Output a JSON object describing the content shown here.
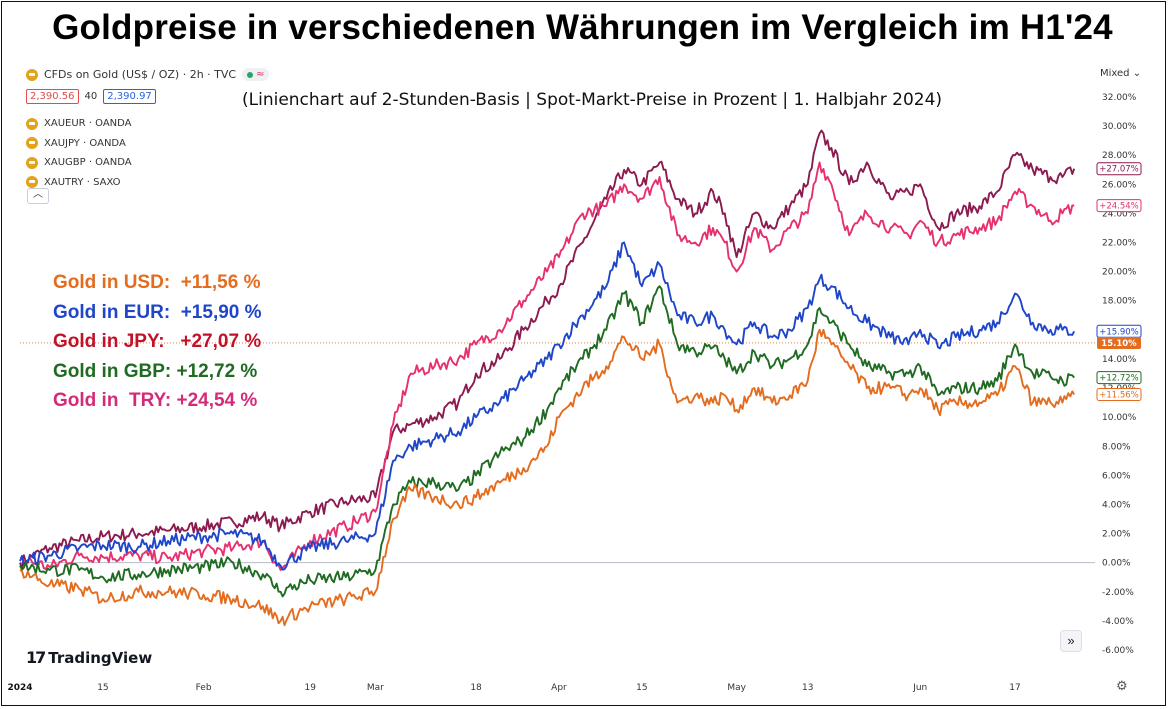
{
  "title": "Goldpreise in verschiedenen Währungen im Vergleich im H1'24",
  "subtitle": "(Linienchart auf 2-Stunden-Basis | Spot-Markt-Preise in Prozent | 1. Halbjahr 2024)",
  "header": {
    "symbol_label": "CFDs on Gold (US$ / OZ) · 2h · TVC",
    "bid": "2,390.56",
    "spread": "40",
    "ask": "2,390.97",
    "scale_mode": "Mixed"
  },
  "compare_symbols": [
    "XAUEUR · OANDA",
    "XAUJPY · OANDA",
    "XAUGBP · OANDA",
    "XAUTRY · SAXO"
  ],
  "performance": [
    {
      "text": "Gold in USD:  +11,56 %",
      "color": "#e36c1f"
    },
    {
      "text": "Gold in EUR:  +15,90 %",
      "color": "#1f46c8"
    },
    {
      "text": "Gold in JPY:   +27,07 %",
      "color": "#c0122a"
    },
    {
      "text": "Gold in GBP: +12,72 %",
      "color": "#1f6b22"
    },
    {
      "text": "Gold in  TRY: +24,54 %",
      "color": "#d42a7a"
    }
  ],
  "branding": {
    "logo_text": "TradingView",
    "logo_mark": "17"
  },
  "chart_data": {
    "type": "line",
    "xlabel": "",
    "ylabel": "",
    "y_unit": "%",
    "ylim": [
      -7,
      33
    ],
    "x_ticks": [
      {
        "label": "2024",
        "day": 0,
        "bold": true
      },
      {
        "label": "15",
        "day": 14
      },
      {
        "label": "Feb",
        "day": 31
      },
      {
        "label": "19",
        "day": 49
      },
      {
        "label": "Mar",
        "day": 60
      },
      {
        "label": "18",
        "day": 77
      },
      {
        "label": "Apr",
        "day": 91
      },
      {
        "label": "15",
        "day": 105
      },
      {
        "label": "May",
        "day": 121
      },
      {
        "label": "13",
        "day": 133
      },
      {
        "label": "Jun",
        "day": 152
      },
      {
        "label": "17",
        "day": 168
      }
    ],
    "x_range_days": [
      0,
      181
    ],
    "y_ticks": [
      "32.00%",
      "30.00%",
      "28.00%",
      "26.00%",
      "24.00%",
      "22.00%",
      "20.00%",
      "18.00%",
      "16.00%",
      "14.00%",
      "12.00%",
      "10.00%",
      "8.00%",
      "6.00%",
      "4.00%",
      "2.00%",
      "0.00%",
      "-2.00%",
      "-4.00%",
      "-6.00%"
    ],
    "y_tick_values": [
      32,
      30,
      28,
      26,
      24,
      22,
      20,
      18,
      16,
      14,
      12,
      10,
      8,
      6,
      4,
      2,
      0,
      -2,
      -4,
      -6
    ],
    "current_price_label": "15.10%",
    "current_price_value": 15.1,
    "series": [
      {
        "name": "XAUJPY",
        "color": "#8b1a4f",
        "end_label": "+27.07%",
        "points": [
          [
            0,
            0
          ],
          [
            5,
            1
          ],
          [
            10,
            1.5
          ],
          [
            14,
            1.8
          ],
          [
            20,
            2
          ],
          [
            25,
            2.2
          ],
          [
            31,
            2.5
          ],
          [
            36,
            2.8
          ],
          [
            41,
            3.2
          ],
          [
            44,
            2.5
          ],
          [
            49,
            3.5
          ],
          [
            55,
            4.2
          ],
          [
            60,
            4.5
          ],
          [
            63,
            9
          ],
          [
            66,
            9.5
          ],
          [
            70,
            10
          ],
          [
            74,
            11
          ],
          [
            77,
            13
          ],
          [
            81,
            14
          ],
          [
            85,
            16
          ],
          [
            89,
            18
          ],
          [
            91,
            19
          ],
          [
            95,
            22
          ],
          [
            99,
            25
          ],
          [
            102,
            27
          ],
          [
            105,
            26
          ],
          [
            108,
            27.5
          ],
          [
            111,
            25
          ],
          [
            114,
            24
          ],
          [
            117,
            25.5
          ],
          [
            119,
            24
          ],
          [
            121,
            21
          ],
          [
            124,
            24
          ],
          [
            127,
            23
          ],
          [
            130,
            24.5
          ],
          [
            133,
            26
          ],
          [
            135,
            29.5
          ],
          [
            137,
            28.5
          ],
          [
            140,
            26
          ],
          [
            143,
            27.5
          ],
          [
            147,
            25
          ],
          [
            150,
            25.5
          ],
          [
            152,
            26
          ],
          [
            155,
            23
          ],
          [
            158,
            24
          ],
          [
            162,
            24.5
          ],
          [
            165,
            25.5
          ],
          [
            168,
            28
          ],
          [
            171,
            27
          ],
          [
            174,
            26.5
          ],
          [
            176,
            26.5
          ],
          [
            178,
            27.07
          ]
        ]
      },
      {
        "name": "XAUTRY",
        "color": "#e6306f",
        "end_label": "+24.54%",
        "points": [
          [
            0,
            0.3
          ],
          [
            5,
            -0.3
          ],
          [
            10,
            0.5
          ],
          [
            14,
            0.4
          ],
          [
            20,
            0.5
          ],
          [
            25,
            0.3
          ],
          [
            31,
            0.8
          ],
          [
            36,
            1
          ],
          [
            41,
            1.5
          ],
          [
            44,
            -0.5
          ],
          [
            49,
            1.5
          ],
          [
            55,
            2.5
          ],
          [
            60,
            3.5
          ],
          [
            63,
            9.5
          ],
          [
            66,
            13
          ],
          [
            70,
            13.5
          ],
          [
            74,
            14
          ],
          [
            77,
            15
          ],
          [
            81,
            16
          ],
          [
            85,
            18
          ],
          [
            89,
            20
          ],
          [
            91,
            21
          ],
          [
            95,
            24
          ],
          [
            99,
            24.5
          ],
          [
            102,
            26
          ],
          [
            105,
            25
          ],
          [
            108,
            26.5
          ],
          [
            111,
            22.5
          ],
          [
            114,
            22
          ],
          [
            117,
            23
          ],
          [
            119,
            22
          ],
          [
            121,
            20
          ],
          [
            124,
            23
          ],
          [
            127,
            21.5
          ],
          [
            130,
            23
          ],
          [
            133,
            24
          ],
          [
            135,
            27.5
          ],
          [
            137,
            26
          ],
          [
            140,
            22.5
          ],
          [
            143,
            24
          ],
          [
            147,
            23
          ],
          [
            150,
            22.5
          ],
          [
            152,
            23.5
          ],
          [
            155,
            22
          ],
          [
            158,
            22.5
          ],
          [
            162,
            23
          ],
          [
            165,
            23.5
          ],
          [
            168,
            25.5
          ],
          [
            171,
            24.5
          ],
          [
            174,
            23.5
          ],
          [
            176,
            24
          ],
          [
            178,
            24.54
          ]
        ]
      },
      {
        "name": "XAUEUR",
        "color": "#1f46c8",
        "end_label": "+15.90%",
        "points": [
          [
            0,
            0.1
          ],
          [
            5,
            0.5
          ],
          [
            10,
            1
          ],
          [
            14,
            1.2
          ],
          [
            20,
            1.1
          ],
          [
            25,
            1.5
          ],
          [
            31,
            1.8
          ],
          [
            36,
            2
          ],
          [
            41,
            1.5
          ],
          [
            44,
            -0.2
          ],
          [
            49,
            1
          ],
          [
            55,
            1.5
          ],
          [
            60,
            2
          ],
          [
            63,
            7
          ],
          [
            66,
            8
          ],
          [
            70,
            8.5
          ],
          [
            74,
            9
          ],
          [
            77,
            10
          ],
          [
            81,
            11
          ],
          [
            85,
            12.5
          ],
          [
            89,
            14
          ],
          [
            91,
            15
          ],
          [
            95,
            17
          ],
          [
            99,
            19
          ],
          [
            102,
            22
          ],
          [
            105,
            19
          ],
          [
            108,
            20.5
          ],
          [
            111,
            17
          ],
          [
            114,
            16.5
          ],
          [
            117,
            17
          ],
          [
            119,
            16
          ],
          [
            121,
            15
          ],
          [
            124,
            16.5
          ],
          [
            127,
            15.5
          ],
          [
            130,
            16
          ],
          [
            133,
            17.5
          ],
          [
            135,
            19.5
          ],
          [
            137,
            19
          ],
          [
            140,
            17.5
          ],
          [
            143,
            16.5
          ],
          [
            147,
            15.5
          ],
          [
            150,
            15
          ],
          [
            152,
            16
          ],
          [
            155,
            14.8
          ],
          [
            158,
            15.5
          ],
          [
            162,
            16
          ],
          [
            165,
            16.5
          ],
          [
            168,
            18.5
          ],
          [
            171,
            16.5
          ],
          [
            174,
            16
          ],
          [
            176,
            16
          ],
          [
            178,
            15.9
          ]
        ]
      },
      {
        "name": "XAUGBP",
        "color": "#1f6b22",
        "end_label": "+12.72%",
        "points": [
          [
            0,
            -0.2
          ],
          [
            5,
            -0.5
          ],
          [
            10,
            -0.5
          ],
          [
            14,
            -1
          ],
          [
            20,
            -0.8
          ],
          [
            25,
            -0.5
          ],
          [
            31,
            -0.3
          ],
          [
            36,
            0
          ],
          [
            41,
            -0.8
          ],
          [
            44,
            -2
          ],
          [
            49,
            -1.2
          ],
          [
            55,
            -1
          ],
          [
            60,
            -0.5
          ],
          [
            63,
            4
          ],
          [
            66,
            5.5
          ],
          [
            70,
            5.5
          ],
          [
            74,
            5
          ],
          [
            77,
            6
          ],
          [
            81,
            7.5
          ],
          [
            85,
            8.5
          ],
          [
            89,
            10.5
          ],
          [
            91,
            12
          ],
          [
            95,
            14
          ],
          [
            99,
            16
          ],
          [
            102,
            18.5
          ],
          [
            105,
            16.5
          ],
          [
            108,
            19
          ],
          [
            111,
            15
          ],
          [
            114,
            14.5
          ],
          [
            117,
            14.8
          ],
          [
            119,
            14
          ],
          [
            121,
            13
          ],
          [
            124,
            14.5
          ],
          [
            127,
            13.5
          ],
          [
            130,
            14
          ],
          [
            133,
            15
          ],
          [
            135,
            17.5
          ],
          [
            137,
            16.5
          ],
          [
            140,
            15
          ],
          [
            143,
            13.5
          ],
          [
            147,
            13
          ],
          [
            150,
            13
          ],
          [
            152,
            13.5
          ],
          [
            155,
            11.5
          ],
          [
            158,
            12
          ],
          [
            162,
            12
          ],
          [
            165,
            12.5
          ],
          [
            168,
            15
          ],
          [
            171,
            13
          ],
          [
            174,
            12.8
          ],
          [
            176,
            12.5
          ],
          [
            178,
            12.72
          ]
        ]
      },
      {
        "name": "XAUUSD",
        "color": "#e36c1f",
        "end_label": "+11.56%",
        "points": [
          [
            0,
            -0.5
          ],
          [
            5,
            -1.5
          ],
          [
            10,
            -1.8
          ],
          [
            14,
            -2.5
          ],
          [
            20,
            -2
          ],
          [
            25,
            -2
          ],
          [
            31,
            -2.2
          ],
          [
            36,
            -2.5
          ],
          [
            41,
            -3
          ],
          [
            44,
            -4
          ],
          [
            49,
            -3
          ],
          [
            55,
            -2.5
          ],
          [
            60,
            -2
          ],
          [
            63,
            3
          ],
          [
            66,
            5
          ],
          [
            70,
            4.5
          ],
          [
            74,
            4
          ],
          [
            77,
            4.5
          ],
          [
            81,
            5.5
          ],
          [
            85,
            6.5
          ],
          [
            89,
            8
          ],
          [
            91,
            10
          ],
          [
            95,
            12
          ],
          [
            99,
            13.5
          ],
          [
            102,
            15.5
          ],
          [
            105,
            14
          ],
          [
            108,
            15
          ],
          [
            111,
            11
          ],
          [
            114,
            11.5
          ],
          [
            117,
            11
          ],
          [
            119,
            11.5
          ],
          [
            121,
            10.5
          ],
          [
            124,
            12
          ],
          [
            127,
            11
          ],
          [
            130,
            11.5
          ],
          [
            133,
            12.5
          ],
          [
            135,
            16
          ],
          [
            137,
            15
          ],
          [
            140,
            13.5
          ],
          [
            143,
            12
          ],
          [
            147,
            12
          ],
          [
            150,
            11.5
          ],
          [
            152,
            12
          ],
          [
            155,
            10.5
          ],
          [
            158,
            11
          ],
          [
            162,
            11
          ],
          [
            165,
            11.5
          ],
          [
            168,
            13.5
          ],
          [
            171,
            11
          ],
          [
            174,
            11
          ],
          [
            176,
            11
          ],
          [
            178,
            11.56
          ]
        ]
      }
    ]
  }
}
